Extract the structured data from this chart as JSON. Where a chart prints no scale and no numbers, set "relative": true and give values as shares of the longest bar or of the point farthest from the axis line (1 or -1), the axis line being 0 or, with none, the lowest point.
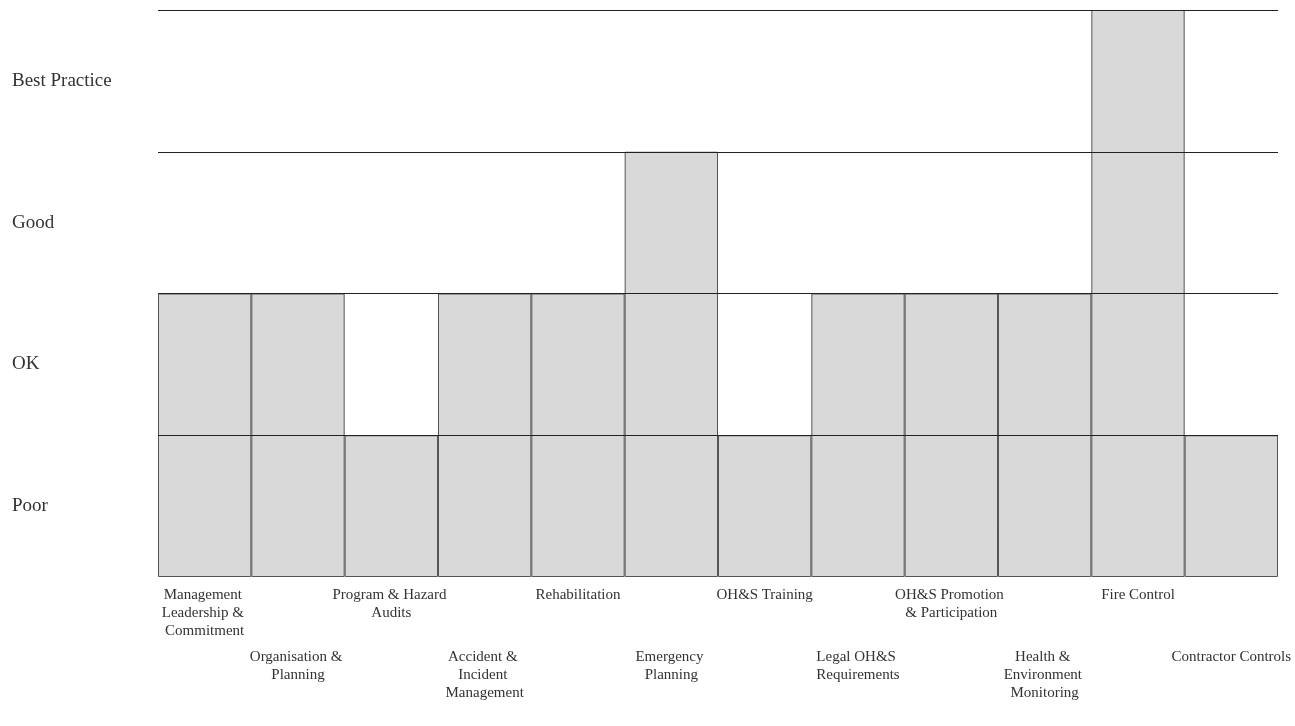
{
  "chart_data": {
    "type": "bar",
    "categories": [
      "Management Leadership & Commitment",
      "Organisation & Planning",
      "Program & Hazard Audits",
      "Accident & Incident Management",
      "Rehabilitation",
      "Emergency Planning",
      "OH&S Training",
      "Legal OH&S Requirements",
      "OH&S Promotion & Participation",
      "Health & Environment Monitoring",
      "Fire Control",
      "Contractor Controls"
    ],
    "values": [
      0.5,
      0.5,
      0.25,
      0.5,
      0.5,
      0.75,
      0.25,
      0.5,
      0.5,
      0.5,
      1,
      0.25
    ],
    "color": "#d9d9d9",
    "relative": true,
    "annotations": [
      "Poor",
      "OK",
      "Good",
      "Best Practice"
    ],
    "grid": "y"
  }
}
